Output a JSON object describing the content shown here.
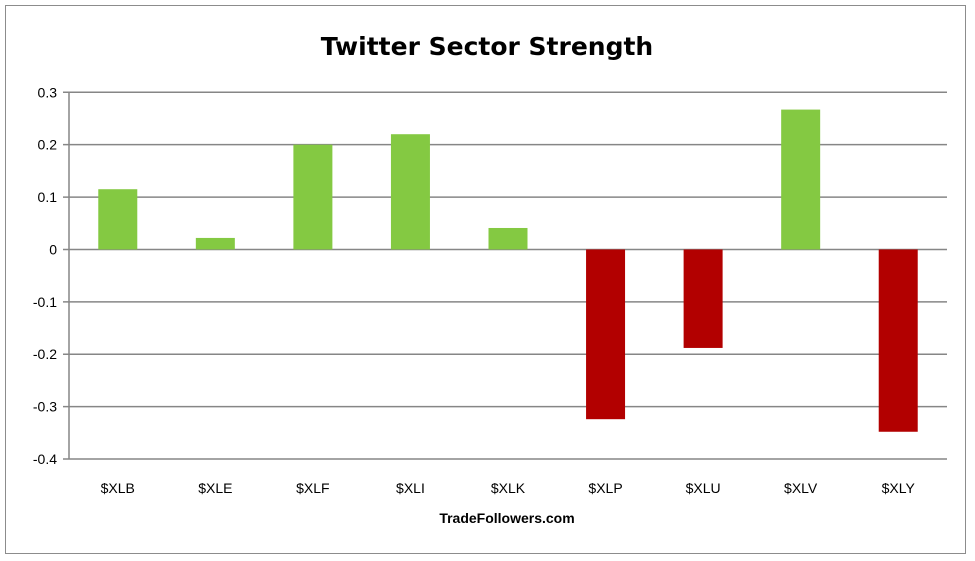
{
  "chart_data": {
    "type": "bar",
    "title": "Twitter Sector Strength",
    "xlabel": "TradeFollowers.com",
    "ylabel": "",
    "categories": [
      "$XLB",
      "$XLE",
      "$XLF",
      "$XLI",
      "$XLK",
      "$XLP",
      "$XLU",
      "$XLV",
      "$XLY"
    ],
    "values": [
      0.115,
      0.022,
      0.2,
      0.22,
      0.041,
      -0.324,
      -0.188,
      0.267,
      -0.348
    ],
    "ylim": [
      -0.4,
      0.3
    ],
    "yticks": [
      "0.3",
      "0.2",
      "0.1",
      "0",
      "-0.1",
      "-0.2",
      "-0.3",
      "-0.4"
    ],
    "grid": true,
    "legend": "none",
    "colors": {
      "positive": "#84c942",
      "negative": "#b20000",
      "grid": "#868686"
    }
  }
}
